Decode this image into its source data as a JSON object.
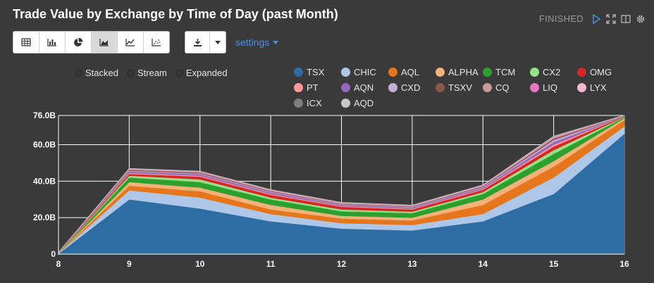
{
  "title": "Trade Value by Exchange by Time of Day (past Month)",
  "status": "FINISHED",
  "toolbar": {
    "buttons": [
      {
        "name": "table-view-button",
        "icon": "table-icon",
        "active": false
      },
      {
        "name": "bar-chart-button",
        "icon": "bar-chart-icon",
        "active": false
      },
      {
        "name": "pie-chart-button",
        "icon": "pie-chart-icon",
        "active": false
      },
      {
        "name": "area-chart-button",
        "icon": "area-chart-icon",
        "active": true
      },
      {
        "name": "line-chart-button",
        "icon": "line-chart-icon",
        "active": false
      },
      {
        "name": "scatter-chart-button",
        "icon": "scatter-chart-icon",
        "active": false
      }
    ],
    "download_icon": "download-icon",
    "dropdown_icon": "caret-down-icon"
  },
  "settings_label": "settings",
  "modes": [
    "Stacked",
    "Stream",
    "Expanded"
  ],
  "chart_data": {
    "type": "area",
    "stacked": true,
    "x": [
      8,
      9,
      10,
      11,
      12,
      13,
      14,
      15,
      16
    ],
    "y_ticks": [
      "0",
      "20.0B",
      "40.0B",
      "60.0B",
      "76.0B"
    ],
    "y_tick_values": [
      0,
      20,
      40,
      60,
      76
    ],
    "ylim": [
      0,
      76
    ],
    "y_unit": "B",
    "grid": true,
    "series": [
      {
        "name": "TSX",
        "color": "#2e6da4",
        "values": [
          0.2,
          30,
          25,
          18,
          14,
          13,
          18,
          33,
          66
        ]
      },
      {
        "name": "CHIC",
        "color": "#aec7e8",
        "values": [
          0.1,
          5,
          6,
          4,
          3,
          3,
          4,
          9,
          4
        ]
      },
      {
        "name": "AQL",
        "color": "#e5761b",
        "values": [
          0.1,
          2.5,
          3.5,
          2.5,
          2.5,
          2.5,
          5,
          6,
          3.5
        ]
      },
      {
        "name": "ALPHA",
        "color": "#f2b27a",
        "values": [
          0.1,
          2,
          2,
          2.5,
          1.5,
          1.5,
          3,
          3,
          1
        ]
      },
      {
        "name": "TCM",
        "color": "#2ca02c",
        "values": [
          0.1,
          2.5,
          3,
          3,
          2.5,
          2.5,
          3,
          4,
          0.5
        ]
      },
      {
        "name": "CX2",
        "color": "#98df8a",
        "values": [
          0.1,
          1,
          1.5,
          1,
          1,
          0.8,
          1,
          2,
          0.3
        ]
      },
      {
        "name": "OMG",
        "color": "#d62728",
        "values": [
          0.1,
          1,
          1.5,
          1.5,
          1.5,
          1.2,
          1.3,
          2,
          0.3
        ]
      },
      {
        "name": "PT",
        "color": "#ff9896",
        "values": [
          0.05,
          0.5,
          0.5,
          0.5,
          0.4,
          0.4,
          0.4,
          1,
          0.1
        ]
      },
      {
        "name": "AQN",
        "color": "#9467bd",
        "values": [
          0.05,
          0.8,
          0.8,
          0.8,
          0.6,
          0.6,
          0.7,
          1.5,
          0.1
        ]
      },
      {
        "name": "CXD",
        "color": "#c5b0d5",
        "values": [
          0.05,
          0.4,
          0.4,
          0.4,
          0.3,
          0.3,
          0.4,
          1,
          0.1
        ]
      },
      {
        "name": "TSXV",
        "color": "#8c564b",
        "values": [
          0.05,
          0.5,
          0.5,
          0.4,
          0.3,
          0.3,
          0.4,
          0.8,
          0.1
        ]
      },
      {
        "name": "CQ",
        "color": "#c49c94",
        "values": [
          0.02,
          0.2,
          0.2,
          0.2,
          0.2,
          0.2,
          0.2,
          0.4,
          0.05
        ]
      },
      {
        "name": "LIQ",
        "color": "#e377c2",
        "values": [
          0.02,
          0.2,
          0.2,
          0.2,
          0.2,
          0.2,
          0.2,
          0.3,
          0.05
        ]
      },
      {
        "name": "LYX",
        "color": "#f7b6d2",
        "values": [
          0.02,
          0.2,
          0.2,
          0.2,
          0.2,
          0.2,
          0.2,
          0.3,
          0.05
        ]
      },
      {
        "name": "ICX",
        "color": "#7f7f7f",
        "values": [
          0.01,
          0.1,
          0.1,
          0.1,
          0.1,
          0.1,
          0.1,
          0.2,
          0.02
        ]
      },
      {
        "name": "AQD",
        "color": "#c7c7c7",
        "values": [
          0.01,
          0.1,
          0.1,
          0.1,
          0.1,
          0.1,
          0.1,
          0.2,
          0.02
        ]
      }
    ]
  }
}
